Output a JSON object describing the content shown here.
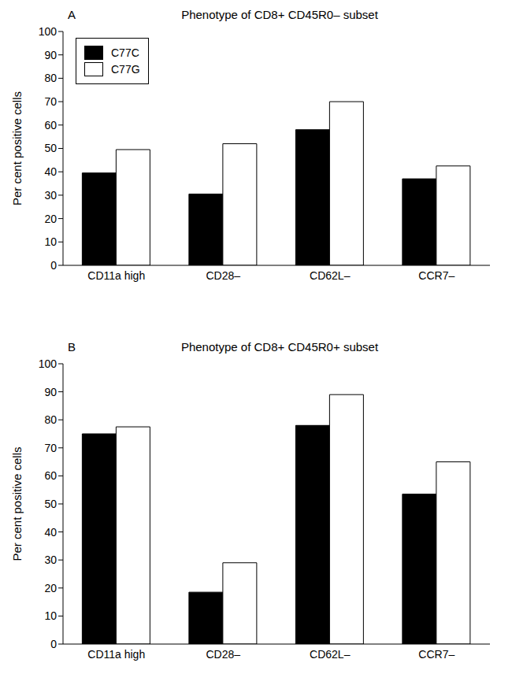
{
  "chart_data": [
    {
      "type": "bar",
      "title": "Phenotype of CD8+ CD45R0– subset",
      "annotations": [
        "A"
      ],
      "categories": [
        "CD11a high",
        "CD28–",
        "CD62L–",
        "CCR7–"
      ],
      "series": [
        {
          "name": "C77C",
          "color": "#000000",
          "values": [
            39.5,
            30.5,
            58,
            37
          ]
        },
        {
          "name": "C77G",
          "color": "#ffffff",
          "values": [
            49.5,
            52,
            70,
            42.5
          ]
        }
      ],
      "y_label": "Per cent positive cells",
      "ylim": [
        0,
        100
      ],
      "yticks": [
        0,
        10,
        20,
        30,
        40,
        50,
        60,
        70,
        80,
        90,
        100
      ],
      "grid": false,
      "legend": "upper left"
    },
    {
      "type": "bar",
      "title": "Phenotype of CD8+ CD45R0+ subset",
      "annotations": [
        "B"
      ],
      "categories": [
        "CD11a high",
        "CD28–",
        "CD62L–",
        "CCR7–"
      ],
      "series": [
        {
          "name": "C77C",
          "color": "#000000",
          "values": [
            75,
            18.5,
            78,
            53.5
          ]
        },
        {
          "name": "C77G",
          "color": "#ffffff",
          "values": [
            77.5,
            29,
            89,
            65
          ]
        }
      ],
      "y_label": "Per cent positive cells",
      "ylim": [
        0,
        100
      ],
      "yticks": [
        0,
        10,
        20,
        30,
        40,
        50,
        60,
        70,
        80,
        90,
        100
      ],
      "grid": false
    }
  ]
}
